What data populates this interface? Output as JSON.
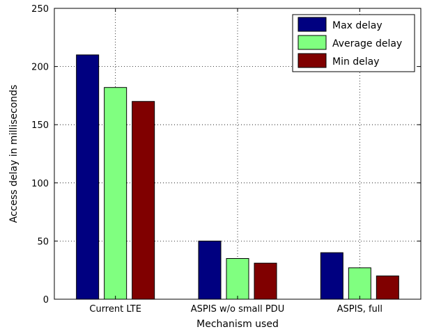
{
  "chart_data": {
    "type": "bar",
    "categories": [
      "Current LTE",
      "ASPIS w/o small PDU",
      "ASPIS, full"
    ],
    "series": [
      {
        "name": "Max delay",
        "color": "#000080",
        "values": [
          210,
          50,
          40
        ]
      },
      {
        "name": "Average delay",
        "color": "#80ff80",
        "values": [
          182,
          35,
          27
        ]
      },
      {
        "name": "Min delay",
        "color": "#800000",
        "values": [
          170,
          31,
          20
        ]
      }
    ],
    "xlabel": "Mechanism used",
    "ylabel": "Access delay in milliseconds",
    "ylim": [
      0,
      250
    ],
    "yticks": [
      0,
      50,
      100,
      150,
      200,
      250
    ],
    "grid": true,
    "legend_position": "top-right"
  }
}
